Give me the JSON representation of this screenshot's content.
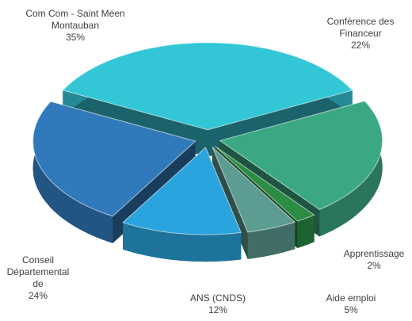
{
  "chart_data": {
    "type": "pie",
    "categories": [
      "Com Com - Saint Méen Montauban",
      "Conférence des Financeur",
      "Apprentissage",
      "Aide emploi",
      "ANS (CNDS)",
      "Conseil Départemental de"
    ],
    "values": [
      35,
      22,
      2,
      5,
      12,
      24
    ],
    "value_labels": [
      "35%",
      "22%",
      "2%",
      "5%",
      "12%",
      "24%"
    ],
    "colors": [
      "#33c6d6",
      "#3aa983",
      "#2b8c44",
      "#5c9c92",
      "#2aa4de",
      "#3079ba"
    ]
  }
}
